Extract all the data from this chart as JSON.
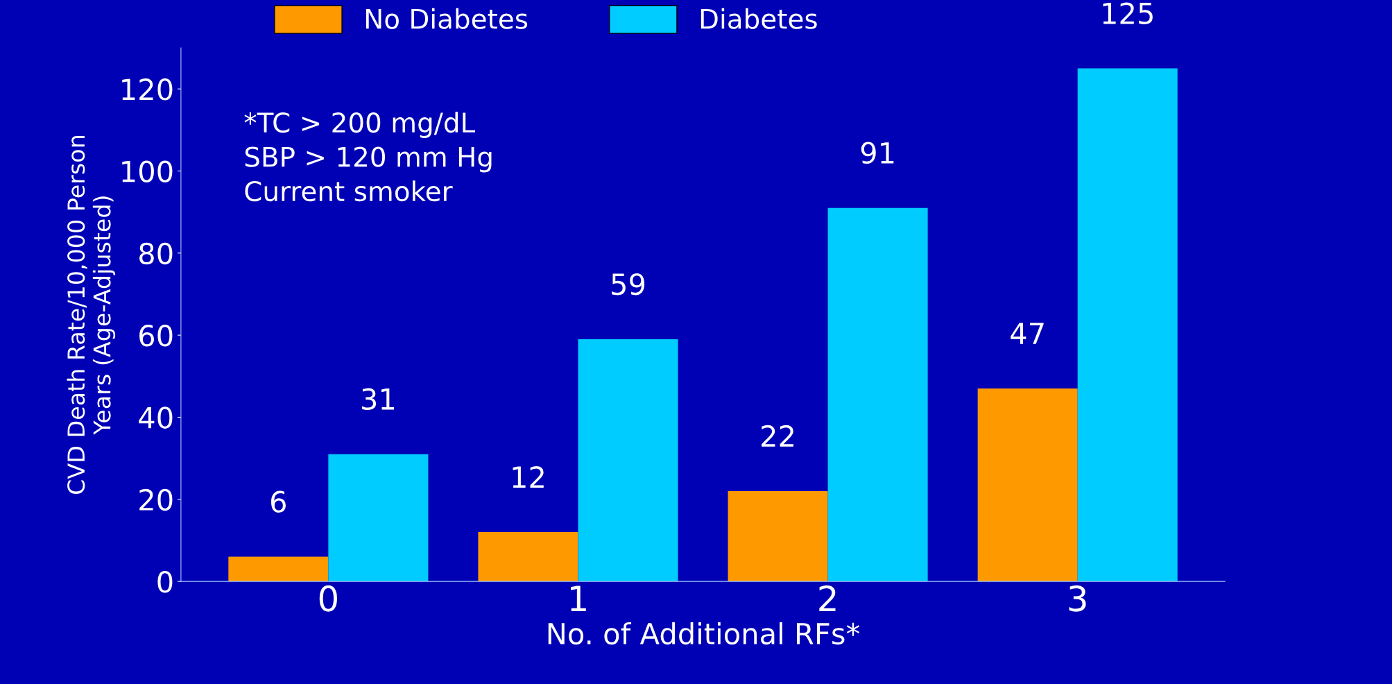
{
  "chart_data": {
    "type": "bar",
    "xlabel": "No. of Additional RFs*",
    "ylabel": "CVD Death Rate/10,000 Person\nYears (Age-Adjusted)",
    "categories": [
      "0",
      "1",
      "2",
      "3"
    ],
    "series": [
      {
        "name": "No Diabetes",
        "color": "#ff9900",
        "values": [
          6,
          12,
          22,
          47
        ]
      },
      {
        "name": "Diabetes",
        "color": "#00ccff",
        "values": [
          31,
          59,
          91,
          125
        ]
      }
    ],
    "ylim": [
      0,
      130
    ],
    "yticks": [
      0,
      20,
      40,
      60,
      80,
      100,
      120
    ],
    "data_labels": true,
    "grid": false,
    "legend": "top",
    "annotations": [
      "*TC > 200 mg/dL\nSBP > 120 mm Hg\nCurrent smoker"
    ]
  }
}
